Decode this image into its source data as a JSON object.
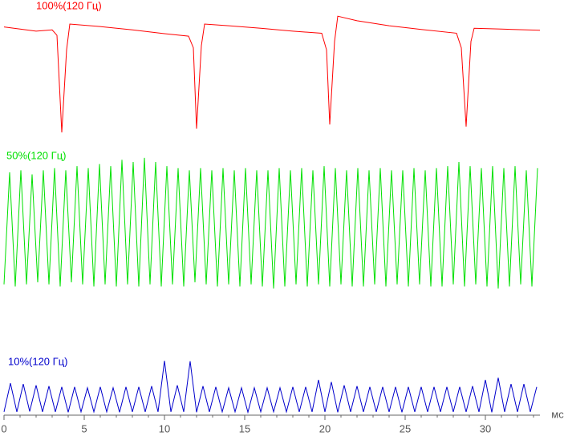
{
  "chart_data": {
    "type": "line",
    "x_label": "мс",
    "xlim": [
      0,
      33.4
    ],
    "xticks": [
      0,
      5,
      10,
      15,
      20,
      25,
      30
    ],
    "ylim": [
      0,
      100
    ],
    "series": [
      {
        "name": "100%(120 Гц)",
        "color": "#ff0000",
        "x": [
          0,
          1,
          2,
          3,
          3.3,
          3.6,
          3.9,
          4.1,
          6,
          8,
          10,
          11.5,
          11.8,
          12.0,
          12.3,
          12.5,
          14,
          16,
          18,
          19.8,
          20.1,
          20.3,
          20.6,
          20.8,
          22,
          24,
          26,
          28.2,
          28.5,
          28.8,
          29.1,
          29.3,
          31,
          33.4
        ],
        "values": [
          93.5,
          93,
          92.5,
          92.8,
          91.5,
          68.1,
          88,
          94.2,
          93.6,
          92.8,
          91.9,
          91.3,
          88.5,
          69,
          89,
          94.2,
          93.8,
          93.2,
          92.5,
          92,
          88,
          70,
          90,
          96.1,
          95,
          93.8,
          92.9,
          92,
          88.5,
          69.5,
          90,
          93.2,
          93,
          92.7
        ]
      },
      {
        "name": "50%(120 Гц)",
        "color": "#00e000",
        "x": [
          0,
          0.35,
          0.7,
          1.05,
          1.4,
          1.75,
          2.1,
          2.45,
          2.8,
          3.15,
          3.5,
          3.85,
          4.2,
          4.55,
          4.9,
          5.25,
          5.6,
          5.95,
          6.3,
          6.65,
          7,
          7.35,
          7.7,
          8.05,
          8.4,
          8.75,
          9.1,
          9.45,
          9.8,
          10.15,
          10.5,
          10.85,
          11.2,
          11.55,
          11.9,
          12.25,
          12.6,
          12.95,
          13.3,
          13.65,
          14,
          14.35,
          14.7,
          15.05,
          15.4,
          15.75,
          16.1,
          16.45,
          16.8,
          17.15,
          17.5,
          17.85,
          18.2,
          18.55,
          18.9,
          19.25,
          19.6,
          19.95,
          20.3,
          20.65,
          21,
          21.35,
          21.7,
          22.05,
          22.4,
          22.75,
          23.1,
          23.45,
          23.8,
          24.15,
          24.5,
          24.85,
          25.2,
          25.55,
          25.9,
          26.25,
          26.6,
          26.95,
          27.3,
          27.65,
          28,
          28.35,
          28.7,
          29.05,
          29.4,
          29.75,
          30.1,
          30.45,
          30.8,
          31.15,
          31.5,
          31.85,
          32.2,
          32.55,
          32.9,
          33.25
        ],
        "values": [
          31.5,
          58.5,
          31,
          59,
          31.5,
          58,
          32,
          59,
          31.5,
          59.5,
          31,
          59,
          32,
          60,
          31.5,
          59.5,
          31,
          60.5,
          31.5,
          60,
          31,
          61.5,
          31.5,
          61,
          31,
          62,
          31.5,
          61,
          31,
          60,
          31.5,
          59.5,
          31,
          59,
          32,
          59.5,
          31.5,
          59,
          31,
          59.5,
          31.5,
          59,
          31,
          59.5,
          31.5,
          59,
          31,
          59,
          30.5,
          59.5,
          31,
          59,
          31.5,
          59.5,
          31,
          59,
          31.5,
          60,
          31,
          59.5,
          31.5,
          59,
          31,
          59.5,
          31,
          59,
          31.5,
          59.5,
          31,
          59,
          31.5,
          59,
          31,
          59.5,
          31.5,
          59,
          31,
          59.5,
          31,
          60,
          31.5,
          61,
          31,
          60,
          31.5,
          59.5,
          31,
          60,
          30.5,
          59.5,
          31,
          60,
          31.5,
          59,
          31,
          59.5
        ]
      },
      {
        "name": "10%(120 Гц)",
        "color": "#0000cc",
        "x": [
          0,
          0.4,
          0.8,
          1.2,
          1.6,
          2,
          2.4,
          2.8,
          3.2,
          3.6,
          4,
          4.4,
          4.8,
          5.2,
          5.6,
          6,
          6.4,
          6.8,
          7.2,
          7.6,
          8,
          8.4,
          8.8,
          9.2,
          9.6,
          10,
          10.4,
          10.8,
          11.2,
          11.6,
          12,
          12.4,
          12.8,
          13.2,
          13.6,
          14,
          14.4,
          14.8,
          15.2,
          15.6,
          16,
          16.4,
          16.8,
          17.2,
          17.6,
          18,
          18.4,
          18.8,
          19.2,
          19.6,
          20,
          20.4,
          20.8,
          21.2,
          21.6,
          22,
          22.4,
          22.8,
          23.2,
          23.6,
          24,
          24.4,
          24.8,
          25.2,
          25.6,
          26,
          26.4,
          26.8,
          27.2,
          27.6,
          28,
          28.4,
          28.8,
          29.2,
          29.6,
          30,
          30.4,
          30.8,
          31.2,
          31.6,
          32,
          32.4,
          32.8,
          33.2
        ],
        "values": [
          0.8,
          7.7,
          0.8,
          7.5,
          0.9,
          7.2,
          0.8,
          7,
          0.8,
          6.8,
          0.7,
          6.8,
          0.8,
          6.6,
          0.8,
          6.8,
          0.8,
          6.6,
          0.7,
          6.8,
          0.8,
          6.8,
          0.8,
          7,
          0.8,
          13.1,
          0.8,
          7.2,
          0.8,
          13,
          0.7,
          7,
          0.8,
          6.8,
          0.8,
          6.6,
          0.8,
          6.6,
          0.7,
          6.6,
          0.8,
          6.6,
          0.8,
          6.6,
          0.8,
          6.8,
          0.8,
          6.8,
          0.8,
          8.5,
          0.8,
          8,
          0.7,
          7.2,
          0.8,
          7,
          0.8,
          6.8,
          0.8,
          6.8,
          0.8,
          6.8,
          0.7,
          6.8,
          0.8,
          6.8,
          0.8,
          6.8,
          0.8,
          6.8,
          0.8,
          6.8,
          0.8,
          7,
          0.8,
          8.5,
          0.7,
          9,
          0.8,
          7.5,
          0.8,
          7.5,
          0.8,
          6.8
        ]
      }
    ]
  }
}
